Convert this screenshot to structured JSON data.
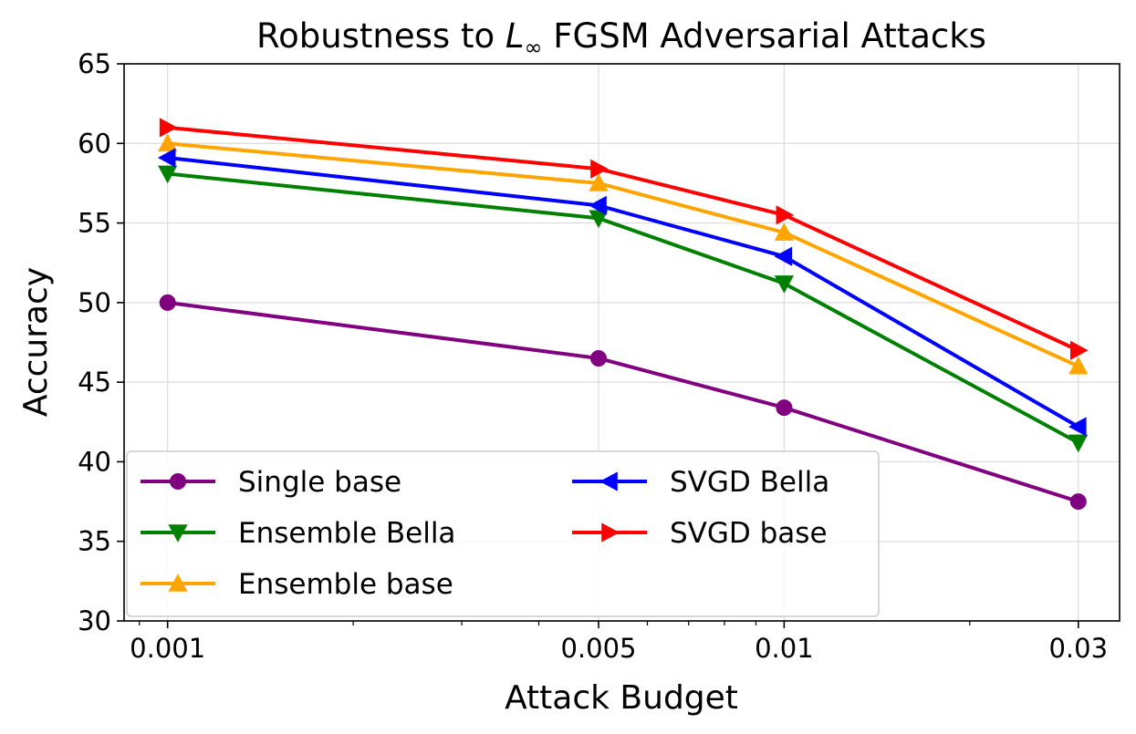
{
  "chart_data": {
    "type": "line",
    "title_prefix": "Robustness to ",
    "title_math": "L",
    "title_sub": "∞",
    "title_suffix": " FGSM Adversarial Attacks",
    "xlabel": "Attack Budget",
    "ylabel": "Accuracy",
    "x_scale": "log",
    "x": [
      0.001,
      0.005,
      0.01,
      0.03
    ],
    "x_tick_labels": [
      "0.001",
      "0.005",
      "0.01",
      "0.03"
    ],
    "ylim": [
      30,
      65
    ],
    "y_ticks": [
      30,
      35,
      40,
      45,
      50,
      55,
      60,
      65
    ],
    "grid": true,
    "legend_position": "lower-left",
    "series": [
      {
        "name": "Single base",
        "color": "#800080",
        "marker": "circle",
        "values": [
          50.0,
          46.5,
          43.4,
          37.5
        ]
      },
      {
        "name": "Ensemble Bella",
        "color": "#008000",
        "marker": "triangle-down",
        "values": [
          58.1,
          55.3,
          51.2,
          41.2
        ]
      },
      {
        "name": "Ensemble base",
        "color": "#FFA500",
        "marker": "triangle-up",
        "values": [
          60.0,
          57.5,
          54.4,
          46.0
        ]
      },
      {
        "name": "SVGD Bella",
        "color": "#0000FF",
        "marker": "triangle-left",
        "values": [
          59.1,
          56.1,
          52.9,
          42.2
        ]
      },
      {
        "name": "SVGD base",
        "color": "#FF0000",
        "marker": "triangle-right",
        "values": [
          61.0,
          58.4,
          55.5,
          47.0
        ]
      }
    ]
  }
}
